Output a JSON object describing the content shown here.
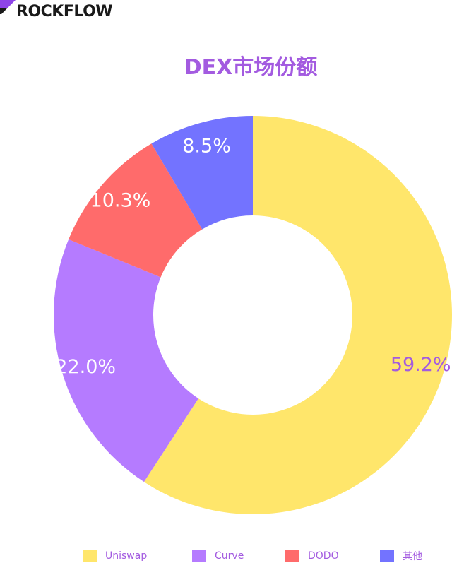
{
  "brand": {
    "name": "ROCKFLOW",
    "accent": "#8e44e8"
  },
  "chart_data": {
    "type": "pie",
    "variant": "donut",
    "title": "DEX市场份额",
    "legend_position": "bottom",
    "categories": [
      "Uniswap",
      "Curve",
      "DODO",
      "其他"
    ],
    "values": [
      59.2,
      22.0,
      10.3,
      8.5
    ],
    "labels": [
      "59.2%",
      "22.0%",
      "10.3%",
      "8.5%"
    ],
    "colors": [
      "#ffe66b",
      "#b57bff",
      "#ff6b6b",
      "#7373ff"
    ],
    "label_colors": [
      "#a35be0",
      "#ffffff",
      "#ffffff",
      "#ffffff"
    ]
  }
}
